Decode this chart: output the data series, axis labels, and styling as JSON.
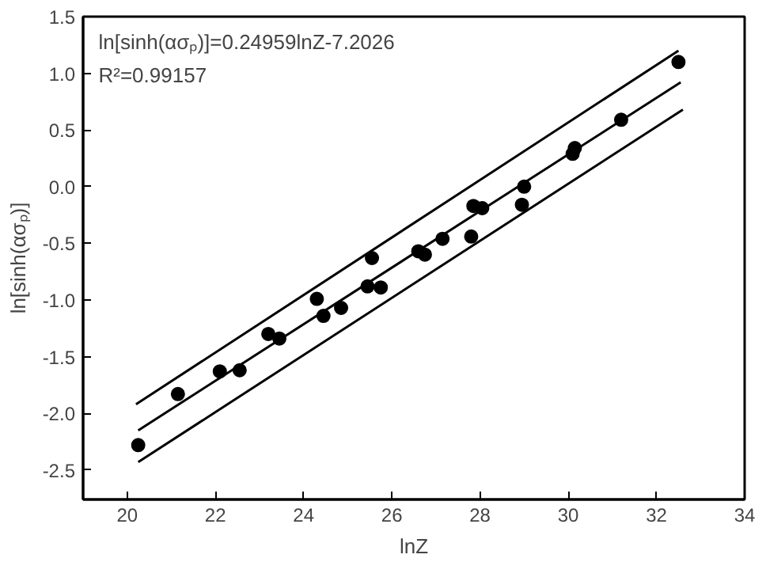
{
  "chart_data": {
    "type": "scatter",
    "xlabel": "lnZ",
    "ylabel": "ln[sinh(ασₚ)]",
    "annotations": [
      "ln[sinh(ασₚ)]=0.24959lnZ-7.2026",
      "R²=0.99157"
    ],
    "xlim": [
      19,
      34
    ],
    "ylim": [
      -2.76,
      1.5
    ],
    "xticks": [
      20,
      22,
      24,
      26,
      28,
      30,
      32,
      34
    ],
    "yticks": [
      {
        "value": -2.5,
        "label": "-2.5"
      },
      {
        "value": -2,
        "label": "-2.0"
      },
      {
        "value": -1.5,
        "label": "-1.5"
      },
      {
        "value": -1,
        "label": "-1.0"
      },
      {
        "value": -0.5,
        "label": "-0.5"
      },
      {
        "value": 0,
        "label": "0.0"
      },
      {
        "value": 0.5,
        "label": "0.5"
      },
      {
        "value": 1,
        "label": "1.0"
      },
      {
        "value": 1.5,
        "label": "1.5"
      }
    ],
    "grid": false,
    "series": [
      {
        "marker": "circle",
        "color": "#000000",
        "x": [
          20.25,
          21.15,
          22.1,
          22.55,
          23.2,
          23.45,
          24.3,
          24.45,
          24.85,
          25.45,
          25.55,
          25.75,
          26.6,
          26.75,
          27.15,
          27.8,
          27.85,
          28.05,
          28.95,
          29.0,
          30.1,
          30.15,
          31.2,
          32.5
        ],
        "values": [
          -2.28,
          -1.83,
          -1.63,
          -1.62,
          -1.3,
          -1.34,
          -0.99,
          -1.14,
          -1.07,
          -0.88,
          -0.63,
          -0.89,
          -0.57,
          -0.6,
          -0.46,
          -0.44,
          -0.17,
          -0.19,
          -0.16,
          0.0,
          0.29,
          0.34,
          0.59,
          1.1
        ]
      },
      {
        "type": "line",
        "marker": "none",
        "color": "#000000",
        "x": [
          20.2,
          32.5
        ],
        "values": [
          -1.92,
          1.2
        ]
      },
      {
        "type": "line",
        "marker": "none",
        "color": "#000000",
        "x": [
          20.25,
          32.55
        ],
        "values": [
          -2.15,
          0.92
        ]
      },
      {
        "type": "line",
        "marker": "none",
        "color": "#000000",
        "x": [
          20.25,
          32.6
        ],
        "values": [
          -2.43,
          0.68
        ]
      }
    ]
  }
}
